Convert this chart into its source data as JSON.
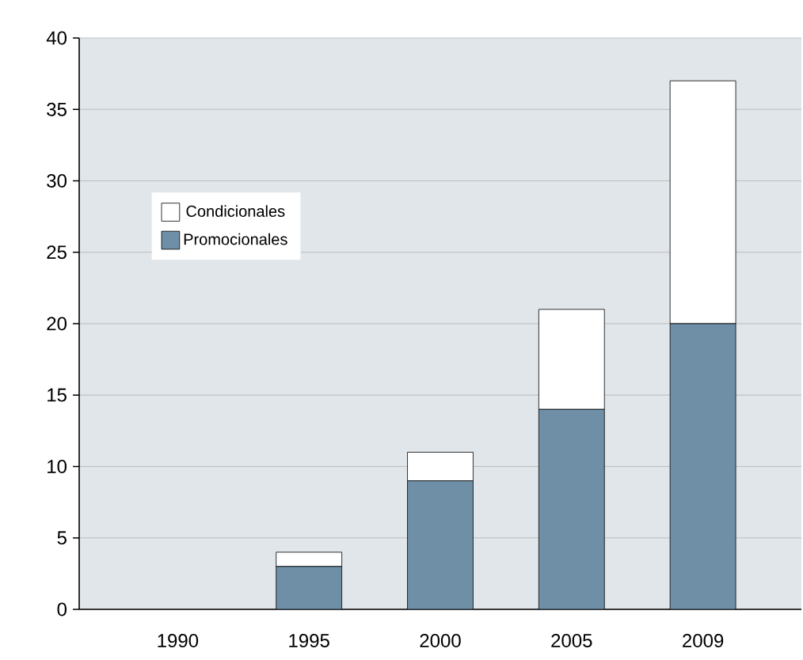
{
  "chart_data": {
    "type": "bar",
    "stacked": true,
    "categories": [
      "1990",
      "1995",
      "2000",
      "2005",
      "2009"
    ],
    "series": [
      {
        "name": "Promocionales",
        "color": "#6e8fa6",
        "values": [
          0,
          3,
          9,
          14,
          20
        ]
      },
      {
        "name": "Condicionales",
        "color": "#ffffff",
        "values": [
          0,
          1,
          2,
          7,
          17
        ]
      }
    ],
    "ylim": [
      0,
      40
    ],
    "yticks": [
      0,
      5,
      10,
      15,
      20,
      25,
      30,
      35,
      40
    ],
    "grid": "y",
    "legend": "top left"
  }
}
